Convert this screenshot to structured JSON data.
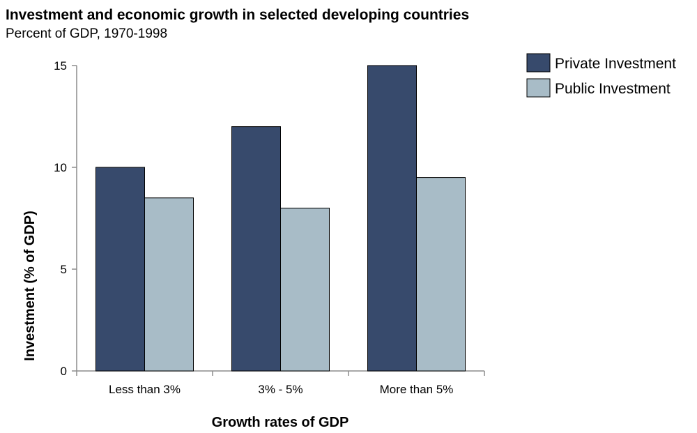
{
  "chart_data": {
    "type": "bar",
    "title": "Investment and economic growth in selected developing countries",
    "subtitle": "Percent of GDP, 1970-1998",
    "xlabel": "Growth rates of GDP",
    "ylabel": "Investment (% of GDP)",
    "categories": [
      "Less than 3%",
      "3% - 5%",
      "More than 5%"
    ],
    "series": [
      {
        "name": "Private Investment",
        "color": "#374a6c",
        "values": [
          10,
          12,
          15
        ]
      },
      {
        "name": "Public Investment",
        "color": "#a8bcc7",
        "values": [
          8.5,
          8,
          9.5
        ]
      }
    ],
    "ylim": [
      0,
      15
    ],
    "yticks": [
      0,
      5,
      10,
      15
    ],
    "grid": false,
    "legend_position": "top-right"
  }
}
